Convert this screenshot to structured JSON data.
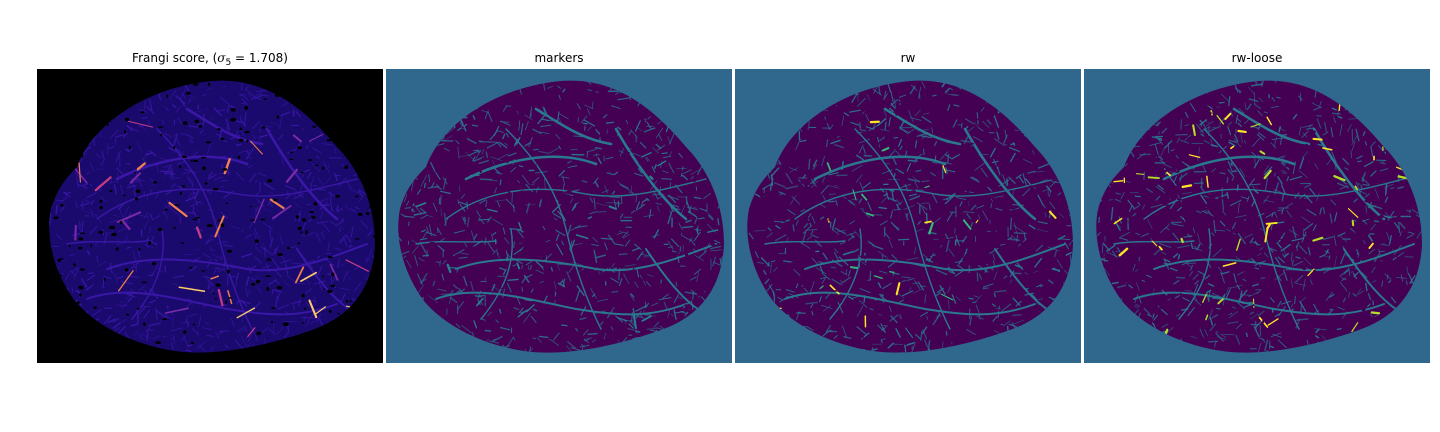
{
  "figure": {
    "panels": [
      {
        "id": "frangi",
        "title_prefix": "Frangi score, (",
        "title_sigma": "σ",
        "title_subscript": "5",
        "title_suffix": " = 1.708)",
        "background_color": "#000000",
        "tissue_color": "#1a0a6e",
        "vessel_colors": [
          "#3a17a6",
          "#7b2aa6",
          "#c23c81",
          "#f07f4f",
          "#fcc96b"
        ]
      },
      {
        "id": "markers",
        "title": "markers",
        "background_color": "#30678d",
        "tissue_color": "#440154",
        "vessel_colors": [
          "#2a788e",
          "#26828e"
        ]
      },
      {
        "id": "rw",
        "title": "rw",
        "background_color": "#30678d",
        "tissue_color": "#440154",
        "vessel_colors": [
          "#2a788e",
          "#35b779",
          "#fde725"
        ]
      },
      {
        "id": "rw-loose",
        "title": "rw-loose",
        "background_color": "#30678d",
        "tissue_color": "#440154",
        "vessel_colors": [
          "#2a788e",
          "#fde725",
          "#b5de2b"
        ]
      }
    ]
  }
}
